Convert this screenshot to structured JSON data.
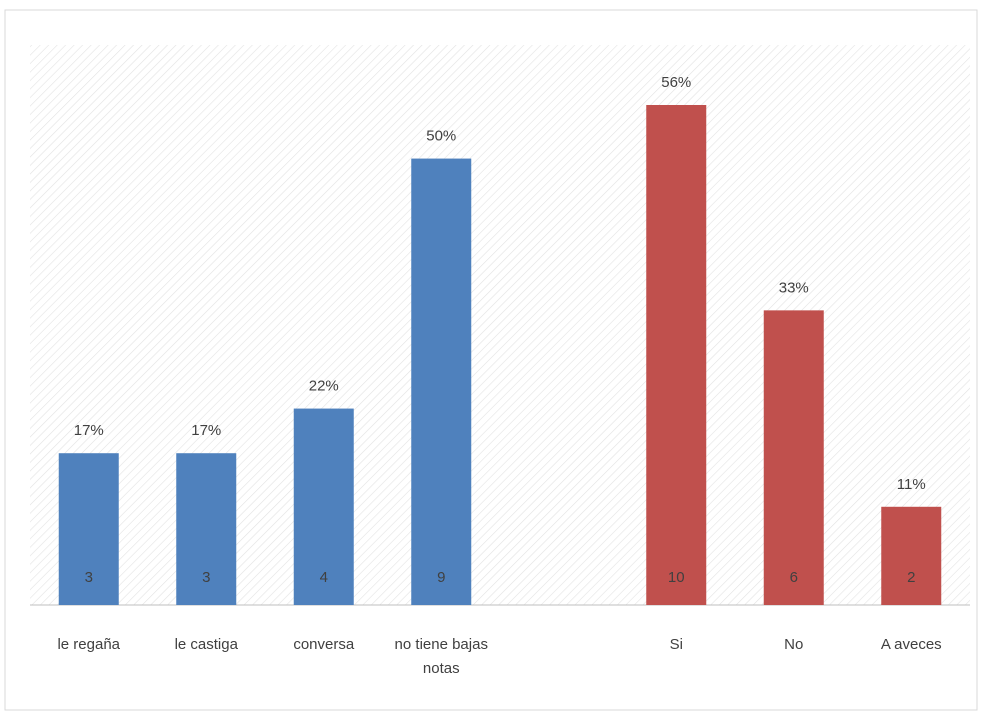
{
  "chart_data": {
    "type": "bar",
    "categories": [
      "le regaña",
      "le castiga",
      "conversa",
      "no tiene bajas notas",
      null,
      "Si",
      "No",
      "A aveces"
    ],
    "series": [
      {
        "color": "#4f81bd",
        "values": [
          17,
          17,
          22,
          50,
          null,
          null,
          null,
          null
        ],
        "value_labels": [
          "17%",
          "17%",
          "22%",
          "50%",
          null,
          null,
          null,
          null
        ],
        "counts": [
          3,
          3,
          4,
          9,
          null,
          null,
          null,
          null
        ]
      },
      {
        "color": "#c0504d",
        "values": [
          null,
          null,
          null,
          null,
          null,
          56,
          33,
          11
        ],
        "value_labels": [
          null,
          null,
          null,
          null,
          null,
          "56%",
          "33%",
          "11%"
        ],
        "counts": [
          null,
          null,
          null,
          null,
          null,
          10,
          6,
          2
        ]
      }
    ]
  }
}
